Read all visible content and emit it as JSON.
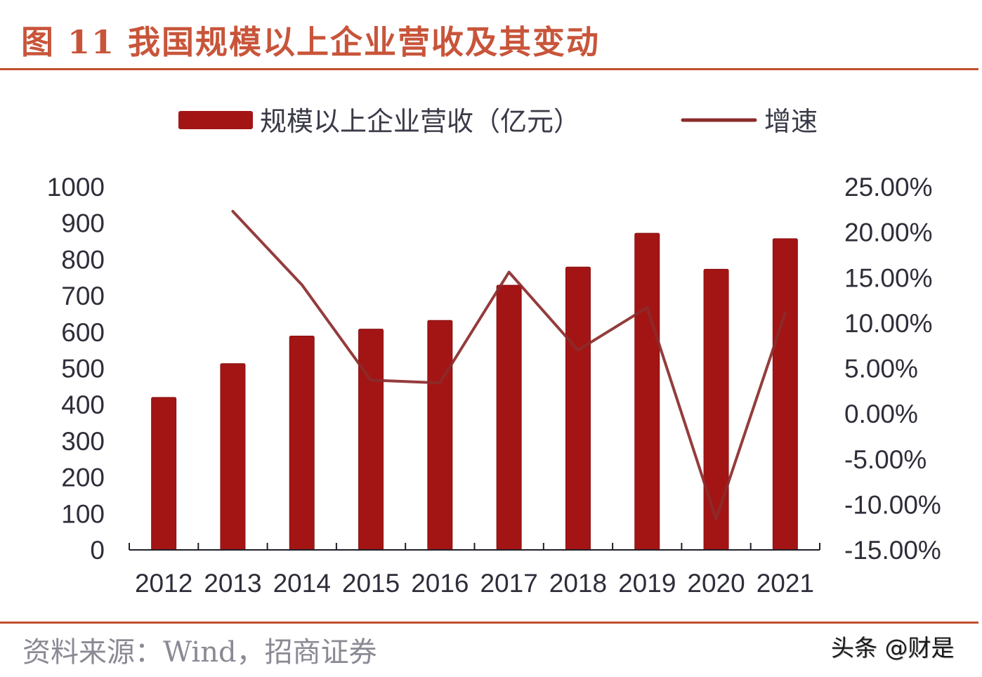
{
  "header": {
    "title": "图 11 我国规模以上企业营收及其变动"
  },
  "legend": {
    "bar_label": "规模以上企业营收（亿元）",
    "line_label": "增速"
  },
  "footer": {
    "source": "资料来源：Wind，招商证券",
    "watermark": "头条 @财是"
  },
  "colors": {
    "title": "#c8553a",
    "rule": "#c0502e",
    "bar": "#a31515",
    "line": "#8b2b2b"
  },
  "chart_data": {
    "type": "bar+line",
    "title": "图 11 我国规模以上企业营收及其变动",
    "categories": [
      "2012",
      "2013",
      "2014",
      "2015",
      "2016",
      "2017",
      "2018",
      "2019",
      "2020",
      "2021"
    ],
    "series": [
      {
        "name": "规模以上企业营收（亿元）",
        "type": "bar",
        "axis": "left",
        "values": [
          420,
          513,
          589,
          608,
          632,
          729,
          779,
          872,
          773,
          857
        ]
      },
      {
        "name": "增速",
        "type": "line",
        "axis": "right",
        "values": [
          null,
          22.3,
          14.2,
          3.7,
          3.4,
          15.6,
          7.0,
          11.7,
          -11.6,
          11.1
        ]
      }
    ],
    "left_axis": {
      "ylim": [
        0,
        1000
      ],
      "ticks": [
        "0",
        "100",
        "200",
        "300",
        "400",
        "500",
        "600",
        "700",
        "800",
        "900",
        "1000"
      ]
    },
    "right_axis": {
      "ylim": [
        -15,
        25
      ],
      "ticks": [
        "-15.00%",
        "-10.00%",
        "-5.00%",
        "0.00%",
        "5.00%",
        "10.00%",
        "15.00%",
        "20.00%",
        "25.00%"
      ]
    },
    "xlabel": "",
    "ylabel": "",
    "grid": false,
    "legend_position": "top"
  }
}
